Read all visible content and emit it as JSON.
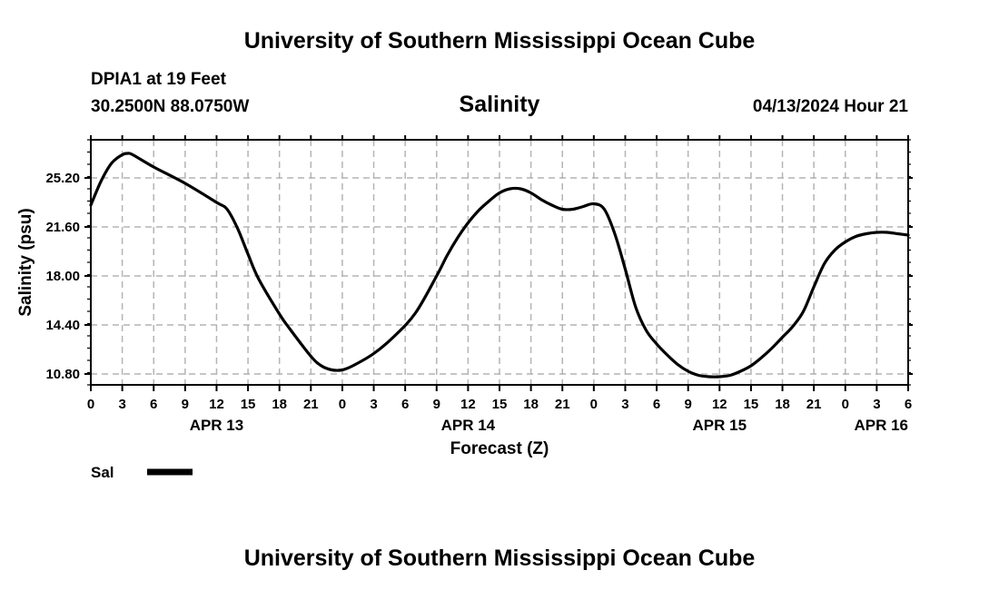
{
  "header": {
    "title": "University of Southern Mississippi Ocean Cube",
    "station": "DPIA1 at 19 Feet",
    "coords": "30.2500N  88.0750W",
    "chart_title": "Salinity",
    "datetime": "04/13/2024 Hour 21"
  },
  "footer": {
    "title": "University of Southern Mississippi Ocean Cube"
  },
  "chart_data": {
    "type": "line",
    "title": "Salinity",
    "xlabel": "Forecast (Z)",
    "ylabel": "Salinity (psu)",
    "xlim": [
      0,
      78
    ],
    "ylim": [
      10,
      28
    ],
    "yticks": [
      "10.80",
      "14.40",
      "18.00",
      "21.60",
      "25.20"
    ],
    "xtick_labels": [
      "0",
      "3",
      "6",
      "9",
      "12",
      "15",
      "18",
      "21",
      "0",
      "3",
      "6",
      "9",
      "12",
      "15",
      "18",
      "21",
      "0",
      "3",
      "6",
      "9",
      "12",
      "15",
      "18",
      "21",
      "0",
      "3",
      "6"
    ],
    "date_labels": [
      {
        "label": "APR 13",
        "hour": 12
      },
      {
        "label": "APR 14",
        "hour": 36
      },
      {
        "label": "APR 15",
        "hour": 60
      },
      {
        "label": "APR 16",
        "hour": 78
      }
    ],
    "grid": true,
    "series": [
      {
        "name": "Sal",
        "x": [
          0,
          1,
          2,
          3,
          3.5,
          4,
          6,
          9,
          12,
          13,
          14,
          15,
          16,
          18,
          19,
          21,
          22,
          23,
          24,
          25,
          27,
          29,
          31,
          33,
          34,
          35,
          36,
          37,
          38,
          39,
          40,
          41,
          42,
          43,
          44,
          45,
          46,
          47,
          48,
          49,
          50,
          51,
          52,
          53,
          54,
          55,
          56,
          57,
          58,
          59,
          60,
          61,
          62,
          63,
          64,
          65,
          66,
          67,
          68,
          69,
          70,
          71,
          72,
          73,
          74,
          75,
          76,
          77,
          78
        ],
        "y": [
          23.2,
          25.0,
          26.3,
          26.9,
          27.0,
          26.9,
          26.0,
          24.8,
          23.4,
          22.9,
          21.5,
          19.6,
          17.8,
          15.2,
          14.1,
          12.1,
          11.4,
          11.1,
          11.1,
          11.4,
          12.3,
          13.6,
          15.3,
          18.0,
          19.5,
          20.8,
          21.9,
          22.8,
          23.5,
          24.1,
          24.4,
          24.4,
          24.1,
          23.6,
          23.2,
          22.9,
          22.9,
          23.1,
          23.3,
          22.9,
          21.1,
          18.5,
          15.7,
          14.0,
          13.0,
          12.2,
          11.5,
          11.0,
          10.7,
          10.6,
          10.6,
          10.7,
          11.0,
          11.4,
          12.0,
          12.7,
          13.5,
          14.3,
          15.4,
          17.2,
          18.9,
          19.9,
          20.5,
          20.9,
          21.1,
          21.2,
          21.2,
          21.1,
          21.0
        ]
      }
    ],
    "legend": [
      {
        "label": "Sal"
      }
    ]
  }
}
